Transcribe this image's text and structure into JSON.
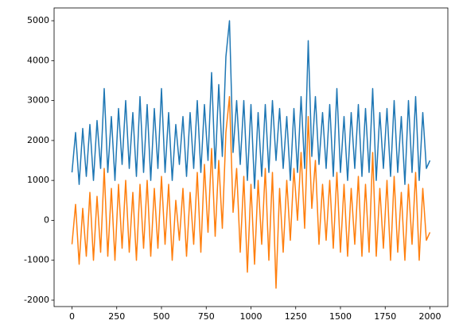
{
  "chart_data": {
    "type": "line",
    "x": [
      0,
      20,
      40,
      60,
      80,
      100,
      120,
      140,
      160,
      180,
      200,
      220,
      240,
      260,
      280,
      300,
      320,
      340,
      360,
      380,
      400,
      420,
      440,
      460,
      480,
      500,
      520,
      540,
      560,
      580,
      600,
      620,
      640,
      660,
      680,
      700,
      720,
      740,
      760,
      780,
      800,
      820,
      840,
      860,
      880,
      900,
      920,
      940,
      960,
      980,
      1000,
      1020,
      1040,
      1060,
      1080,
      1100,
      1120,
      1140,
      1160,
      1180,
      1200,
      1220,
      1240,
      1260,
      1280,
      1300,
      1320,
      1340,
      1360,
      1380,
      1400,
      1420,
      1440,
      1460,
      1480,
      1500,
      1520,
      1540,
      1560,
      1580,
      1600,
      1620,
      1640,
      1660,
      1680,
      1700,
      1720,
      1740,
      1760,
      1780,
      1800,
      1820,
      1840,
      1860,
      1880,
      1900,
      1920,
      1940,
      1960,
      1980,
      2000
    ],
    "series": [
      {
        "color": "#1f77b4",
        "values": [
          1200,
          2200,
          900,
          2300,
          1100,
          2400,
          1000,
          2500,
          1300,
          3300,
          1200,
          2600,
          1000,
          2800,
          1400,
          3000,
          1300,
          2700,
          1100,
          3100,
          1200,
          2900,
          1000,
          2800,
          1300,
          3300,
          1200,
          2700,
          1000,
          2400,
          1400,
          2600,
          1100,
          2700,
          1300,
          3000,
          1200,
          2900,
          1500,
          3700,
          1300,
          3400,
          1600,
          4100,
          5000,
          1700,
          3000,
          1400,
          3000,
          1000,
          2900,
          800,
          2700,
          1100,
          2900,
          1200,
          3000,
          1500,
          2800,
          1300,
          2600,
          1000,
          2800,
          1200,
          3100,
          1300,
          4500,
          1600,
          3100,
          1400,
          2700,
          1300,
          2900,
          1100,
          3300,
          1200,
          2600,
          1000,
          2700,
          1300,
          2900,
          1100,
          2800,
          1200,
          3300,
          1000,
          2700,
          1300,
          2800,
          1100,
          3000,
          1200,
          2600,
          900,
          3000,
          1200,
          3100,
          1000,
          2700,
          1300,
          1500
        ]
      },
      {
        "color": "#ff7f0e",
        "values": [
          -600,
          400,
          -1100,
          300,
          -900,
          700,
          -1000,
          600,
          -800,
          1300,
          -900,
          800,
          -1000,
          900,
          -700,
          1000,
          -800,
          700,
          -1000,
          900,
          -700,
          1000,
          -900,
          800,
          -700,
          1100,
          -600,
          900,
          -1000,
          500,
          -500,
          800,
          -900,
          700,
          -600,
          1200,
          -800,
          1400,
          -300,
          1800,
          -400,
          1500,
          -200,
          2200,
          3100,
          200,
          1300,
          -800,
          1100,
          -1300,
          900,
          -1100,
          1000,
          -600,
          1300,
          -1000,
          1200,
          -1700,
          800,
          -800,
          1000,
          -500,
          1300,
          0,
          1700,
          -200,
          2600,
          300,
          1500,
          -600,
          900,
          -500,
          1000,
          -700,
          1200,
          -800,
          900,
          -900,
          800,
          -600,
          1100,
          -900,
          900,
          -800,
          1700,
          -900,
          800,
          -700,
          1000,
          -1000,
          1100,
          -800,
          700,
          -1000,
          900,
          -600,
          1200,
          -1000,
          800,
          -500,
          -300
        ]
      }
    ],
    "xlim": [
      -100,
      2100
    ],
    "ylim": [
      -2160,
      5320
    ],
    "xticks": [
      0,
      250,
      500,
      750,
      1000,
      1250,
      1500,
      1750,
      2000
    ],
    "yticks": [
      -2000,
      -1000,
      0,
      1000,
      2000,
      3000,
      4000,
      5000
    ]
  }
}
